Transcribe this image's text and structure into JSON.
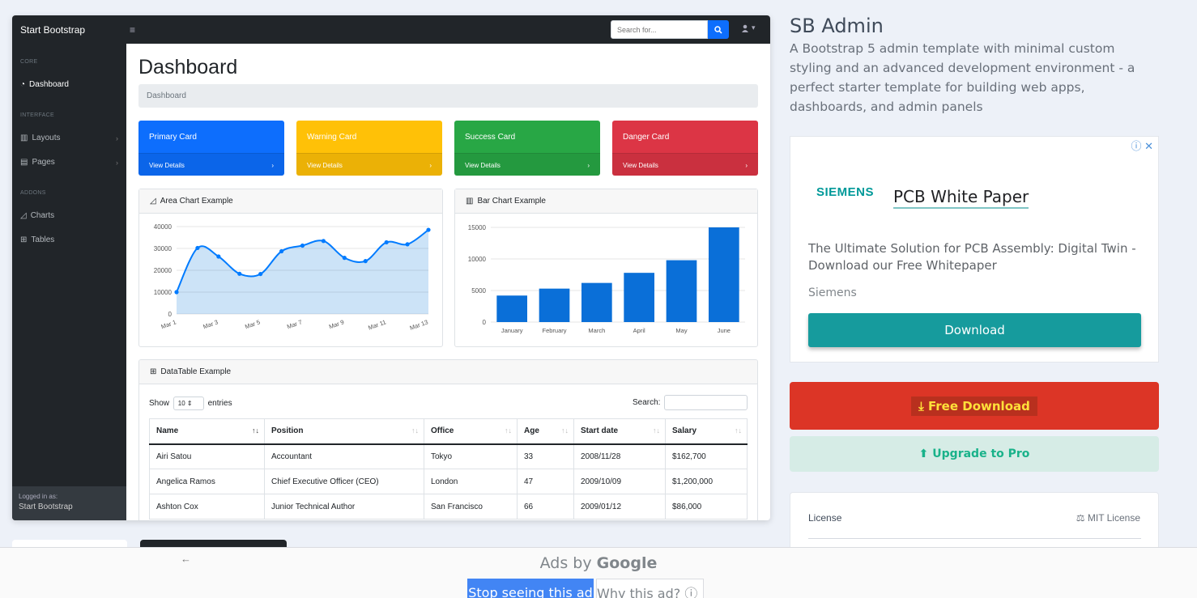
{
  "preview": {
    "topnav": {
      "brand": "Start Bootstrap",
      "toggle_icon": "bars-icon",
      "search_placeholder": "Search for...",
      "user_icon": "user-icon"
    },
    "sidenav": {
      "sections": [
        {
          "heading": "Core",
          "items": [
            {
              "label": "Dashboard",
              "icon": "tachometer-icon",
              "active": true
            }
          ]
        },
        {
          "heading": "Interface",
          "items": [
            {
              "label": "Layouts",
              "icon": "columns-icon",
              "chevron": true
            },
            {
              "label": "Pages",
              "icon": "book-open-icon",
              "chevron": true
            }
          ]
        },
        {
          "heading": "Addons",
          "items": [
            {
              "label": "Charts",
              "icon": "chart-area-icon"
            },
            {
              "label": "Tables",
              "icon": "table-icon"
            }
          ]
        }
      ],
      "footer": {
        "label": "Logged in as:",
        "user": "Start Bootstrap"
      }
    },
    "main": {
      "title": "Dashboard",
      "breadcrumb": "Dashboard",
      "cards": [
        {
          "title": "Primary Card",
          "link": "View Details",
          "color": "#0d6efd"
        },
        {
          "title": "Warning Card",
          "link": "View Details",
          "color": "#ffc107"
        },
        {
          "title": "Success Card",
          "link": "View Details",
          "color": "#198754"
        },
        {
          "title": "Danger Card",
          "link": "View Details",
          "color": "#dc3545"
        }
      ],
      "area_chart_title": "Area Chart Example",
      "bar_chart_title": "Bar Chart Example",
      "datatable": {
        "title": "DataTable Example",
        "show_label": "Show",
        "entries_value": "10",
        "entries_label": "entries",
        "search_label": "Search:",
        "columns": [
          "Name",
          "Position",
          "Office",
          "Age",
          "Start date",
          "Salary"
        ],
        "rows": [
          [
            "Airi Satou",
            "Accountant",
            "Tokyo",
            "33",
            "2008/11/28",
            "$162,700"
          ],
          [
            "Angelica Ramos",
            "Chief Executive Officer (CEO)",
            "London",
            "47",
            "2009/10/09",
            "$1,200,000"
          ],
          [
            "Ashton Cox",
            "Junior Technical Author",
            "San Francisco",
            "66",
            "2009/01/12",
            "$86,000"
          ]
        ]
      }
    }
  },
  "chart_data": [
    {
      "type": "area",
      "x": [
        "Mar 1",
        "Mar 2",
        "Mar 3",
        "Mar 4",
        "Mar 5",
        "Mar 6",
        "Mar 7",
        "Mar 8",
        "Mar 9",
        "Mar 10",
        "Mar 11",
        "Mar 12",
        "Mar 13"
      ],
      "xticks": [
        "Mar 1",
        "Mar 3",
        "Mar 5",
        "Mar 7",
        "Mar 9",
        "Mar 11",
        "Mar 13"
      ],
      "values": [
        10000,
        30200,
        26300,
        18400,
        18300,
        28700,
        31300,
        33400,
        25700,
        24200,
        32800,
        31900,
        38500
      ],
      "ylim": [
        0,
        40000
      ],
      "yticks": [
        0,
        10000,
        20000,
        30000,
        40000
      ],
      "color": "#007bff",
      "grid": true
    },
    {
      "type": "bar",
      "categories": [
        "January",
        "February",
        "March",
        "April",
        "May",
        "June"
      ],
      "values": [
        4200,
        5300,
        6200,
        7800,
        9800,
        15000
      ],
      "ylim": [
        0,
        15000
      ],
      "yticks": [
        0,
        5000,
        10000,
        15000
      ],
      "color": "#0a6fd8",
      "grid": true
    }
  ],
  "right": {
    "title": "SB Admin",
    "description": "A Bootstrap 5 admin template with minimal custom styling and an advanced development environment - a perfect starter template for building web apps, dashboards, and admin panels",
    "ad": {
      "choices_icon": "ad-choices-icon",
      "brand": "SIEMENS",
      "headline": "PCB White Paper",
      "body": "The Ultimate Solution for PCB Assembly: Digital Twin - Download our Free Whitepaper",
      "advertiser": "Siemens",
      "cta": "Download"
    },
    "free_download": "Free Download",
    "upgrade": "Upgrade to Pro",
    "license_label": "License",
    "license_value": "MIT License"
  },
  "adbar": {
    "ads_by": "Ads by",
    "google": "Google",
    "stop_label": "Stop seeing this ad",
    "why_label": "Why this ad?"
  }
}
